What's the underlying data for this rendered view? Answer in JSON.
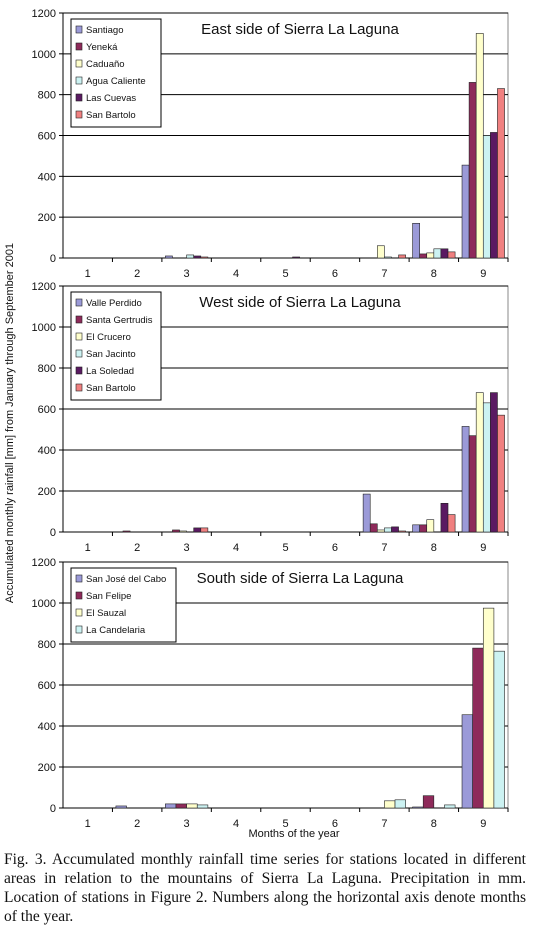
{
  "figure": {
    "ylabel": "Accumulated monthly rainfall [mm] from January through September 2001",
    "xlabel": "Months of the year"
  },
  "caption": "Fig. 3. Accumulated monthly rainfall time series for stations located in different areas in relation to the mountains of Sierra La Laguna. Precipitation in mm. Location of stations in Figure 2. Numbers along the horizontal axis denote months of the year.",
  "chart_data": [
    {
      "type": "bar",
      "title": "East side of Sierra La Laguna",
      "categories": [
        "1",
        "2",
        "3",
        "4",
        "5",
        "6",
        "7",
        "8",
        "9"
      ],
      "ylim": [
        0,
        1200
      ],
      "yticks": [
        0,
        200,
        400,
        600,
        800,
        1000,
        1200
      ],
      "grid": true,
      "legend": "top-left",
      "series": [
        {
          "name": "Santiago",
          "color": "#9b9ad8",
          "values": [
            0,
            0,
            10,
            0,
            0,
            0,
            0,
            170,
            455
          ]
        },
        {
          "name": "Yeneká",
          "color": "#8e2a5a",
          "values": [
            0,
            0,
            0,
            0,
            0,
            0,
            0,
            20,
            860
          ]
        },
        {
          "name": "Caduaño",
          "color": "#ffffcc",
          "values": [
            0,
            0,
            0,
            0,
            0,
            0,
            60,
            25,
            1100
          ]
        },
        {
          "name": "Agua Caliente",
          "color": "#ccf2f2",
          "values": [
            0,
            0,
            15,
            0,
            0,
            0,
            5,
            45,
            600
          ]
        },
        {
          "name": "Las Cuevas",
          "color": "#5a1a62",
          "values": [
            0,
            0,
            10,
            0,
            5,
            0,
            0,
            45,
            615
          ]
        },
        {
          "name": "San Bartolo",
          "color": "#f08080",
          "values": [
            0,
            0,
            5,
            0,
            0,
            0,
            15,
            30,
            830
          ]
        }
      ]
    },
    {
      "type": "bar",
      "title": "West side of Sierra La Laguna",
      "categories": [
        "1",
        "2",
        "3",
        "4",
        "5",
        "6",
        "7",
        "8",
        "9"
      ],
      "ylim": [
        0,
        1200
      ],
      "yticks": [
        0,
        200,
        400,
        600,
        800,
        1000,
        1200
      ],
      "grid": true,
      "legend": "top-left",
      "series": [
        {
          "name": "Valle Perdido",
          "color": "#9b9ad8",
          "values": [
            0,
            0,
            0,
            0,
            0,
            0,
            185,
            35,
            515
          ]
        },
        {
          "name": "Santa Gertrudis",
          "color": "#8e2a5a",
          "values": [
            0,
            5,
            10,
            0,
            0,
            0,
            40,
            35,
            470
          ]
        },
        {
          "name": "El Crucero",
          "color": "#ffffcc",
          "values": [
            0,
            0,
            5,
            0,
            0,
            0,
            10,
            60,
            680
          ]
        },
        {
          "name": "San Jacinto",
          "color": "#ccf2f2",
          "values": [
            0,
            0,
            0,
            0,
            0,
            0,
            20,
            0,
            630
          ]
        },
        {
          "name": "La Soledad",
          "color": "#5a1a62",
          "values": [
            0,
            0,
            20,
            0,
            0,
            0,
            25,
            140,
            680
          ]
        },
        {
          "name": "San Bartolo",
          "color": "#f08080",
          "values": [
            0,
            0,
            20,
            0,
            0,
            0,
            5,
            85,
            570
          ]
        }
      ]
    },
    {
      "type": "bar",
      "title": "South side of Sierra La Laguna",
      "categories": [
        "1",
        "2",
        "3",
        "4",
        "5",
        "6",
        "7",
        "8",
        "9"
      ],
      "ylim": [
        0,
        1200
      ],
      "yticks": [
        0,
        200,
        400,
        600,
        800,
        1000,
        1200
      ],
      "grid": true,
      "legend": "top-left",
      "series": [
        {
          "name": "San José del Cabo",
          "color": "#9b9ad8",
          "values": [
            0,
            10,
            20,
            0,
            0,
            0,
            0,
            5,
            455
          ]
        },
        {
          "name": "San Felipe",
          "color": "#8e2a5a",
          "values": [
            0,
            0,
            20,
            0,
            0,
            0,
            0,
            60,
            780
          ]
        },
        {
          "name": "El Sauzal",
          "color": "#ffffcc",
          "values": [
            0,
            0,
            20,
            0,
            0,
            0,
            35,
            0,
            975
          ]
        },
        {
          "name": "La Candelaria",
          "color": "#ccf2f2",
          "values": [
            0,
            0,
            15,
            0,
            0,
            0,
            40,
            15,
            765
          ]
        }
      ]
    }
  ]
}
